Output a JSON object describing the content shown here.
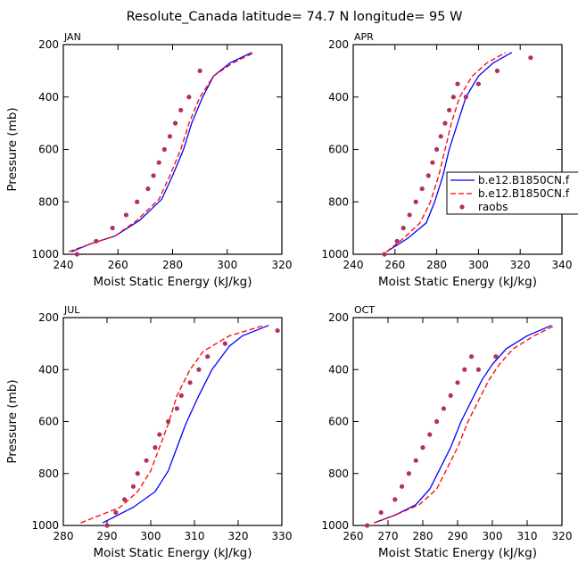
{
  "title": "Resolute_Canada   latitude=  74.7 N longitude=  95 W",
  "colors": {
    "series1": "#0000ff",
    "series2": "#ff0000",
    "raobs": "#b03060"
  },
  "legend": {
    "labels": [
      "b.e12.B1850CN.f",
      "b.e12.B1850CN.f",
      "raobs"
    ],
    "placement": "right of APR panel, clipped at page edge"
  },
  "chart_data": [
    {
      "type": "line",
      "panel": "JAN",
      "xlabel": "Moist Static Energy (kJ/kg)",
      "ylabel": "Pressure (mb)",
      "xlim": [
        240,
        320
      ],
      "ylim": [
        1000,
        200
      ],
      "y_reversed": true,
      "xticks": [
        240,
        260,
        280,
        300,
        320
      ],
      "yticks": [
        200,
        400,
        600,
        800,
        1000
      ],
      "grid": false,
      "series": [
        {
          "name": "b.e12.B1850CN.f",
          "style": "solid",
          "color": "#0000ff",
          "x": [
            243,
            250,
            259,
            268,
            276,
            280,
            284,
            287,
            291,
            295,
            301,
            309
          ],
          "y": [
            990,
            960,
            930,
            870,
            790,
            700,
            600,
            500,
            400,
            320,
            270,
            230
          ]
        },
        {
          "name": "b.e12.B1850CN.f",
          "style": "dashed",
          "color": "#ff0000",
          "x": [
            242,
            250,
            259,
            267,
            275,
            279,
            283,
            286,
            290,
            295,
            302,
            310
          ],
          "y": [
            990,
            960,
            930,
            870,
            790,
            700,
            600,
            500,
            400,
            320,
            270,
            230
          ]
        },
        {
          "name": "raobs",
          "style": "markers",
          "color": "#b03060",
          "x": [
            245,
            252,
            258,
            263,
            267,
            271,
            273,
            275,
            277,
            279,
            281,
            283,
            286,
            290
          ],
          "y": [
            1000,
            950,
            900,
            850,
            800,
            750,
            700,
            650,
            600,
            550,
            500,
            450,
            400,
            300
          ]
        }
      ]
    },
    {
      "type": "line",
      "panel": "APR",
      "xlabel": "Moist Static Energy (kJ/kg)",
      "ylabel": "",
      "xlim": [
        240,
        340
      ],
      "ylim": [
        1000,
        200
      ],
      "y_reversed": true,
      "xticks": [
        240,
        260,
        280,
        300,
        320,
        340
      ],
      "yticks": [
        200,
        400,
        600,
        800,
        1000
      ],
      "grid": false,
      "series": [
        {
          "name": "b.e12.B1850CN.f",
          "style": "solid",
          "color": "#0000ff",
          "x": [
            256,
            266,
            275,
            279,
            283,
            286,
            290,
            294,
            300,
            307,
            316
          ],
          "y": [
            990,
            940,
            880,
            800,
            700,
            600,
            500,
            400,
            320,
            270,
            230
          ]
        },
        {
          "name": "b.e12.B1850CN.f",
          "style": "dashed",
          "color": "#ff0000",
          "x": [
            256,
            264,
            272,
            277,
            281,
            284,
            287,
            291,
            297,
            304,
            313
          ],
          "y": [
            990,
            940,
            880,
            800,
            700,
            600,
            500,
            400,
            320,
            270,
            230
          ]
        },
        {
          "name": "raobs",
          "style": "markers",
          "color": "#b03060",
          "x": [
            255,
            261,
            264,
            267,
            270,
            273,
            276,
            278,
            280,
            282,
            284,
            286,
            288,
            290,
            294,
            300,
            309,
            325
          ],
          "y": [
            1000,
            950,
            900,
            850,
            800,
            750,
            700,
            650,
            600,
            550,
            500,
            450,
            400,
            350,
            400,
            350,
            300,
            250
          ]
        }
      ]
    },
    {
      "type": "line",
      "panel": "JUL",
      "xlabel": "Moist Static Energy (kJ/kg)",
      "ylabel": "Pressure (mb)",
      "xlim": [
        280,
        330
      ],
      "ylim": [
        1000,
        200
      ],
      "y_reversed": true,
      "xticks": [
        280,
        290,
        300,
        310,
        320,
        330
      ],
      "yticks": [
        200,
        400,
        600,
        800,
        1000
      ],
      "grid": false,
      "series": [
        {
          "name": "b.e12.B1850CN.f",
          "style": "solid",
          "color": "#0000ff",
          "x": [
            289,
            296,
            301,
            304,
            306,
            308,
            311,
            314,
            318,
            321,
            327
          ],
          "y": [
            990,
            930,
            870,
            790,
            700,
            610,
            500,
            400,
            310,
            270,
            230
          ]
        },
        {
          "name": "b.e12.B1850CN.f",
          "style": "dashed",
          "color": "#ff0000",
          "x": [
            284,
            293,
            297,
            300,
            302,
            304,
            306,
            309,
            312,
            315,
            318,
            326
          ],
          "y": [
            990,
            930,
            870,
            790,
            700,
            610,
            500,
            400,
            330,
            300,
            270,
            230
          ]
        },
        {
          "name": "raobs",
          "style": "markers",
          "color": "#b03060",
          "x": [
            290,
            292,
            294,
            296,
            297,
            299,
            301,
            302,
            304,
            306,
            307,
            309,
            311,
            313,
            317,
            329
          ],
          "y": [
            1000,
            950,
            900,
            850,
            800,
            750,
            700,
            650,
            600,
            550,
            500,
            450,
            400,
            350,
            300,
            250
          ]
        }
      ]
    },
    {
      "type": "line",
      "panel": "OCT",
      "xlabel": "Moist Static Energy (kJ/kg)",
      "ylabel": "",
      "xlim": [
        260,
        320
      ],
      "ylim": [
        1000,
        200
      ],
      "y_reversed": true,
      "xticks": [
        260,
        270,
        280,
        290,
        300,
        310,
        320
      ],
      "yticks": [
        200,
        400,
        600,
        800,
        1000
      ],
      "grid": false,
      "series": [
        {
          "name": "b.e12.B1850CN.f",
          "style": "solid",
          "color": "#0000ff",
          "x": [
            266,
            272,
            278,
            282,
            285,
            288,
            291,
            294,
            297,
            300,
            304,
            310,
            317
          ],
          "y": [
            990,
            960,
            920,
            860,
            780,
            700,
            600,
            520,
            440,
            380,
            320,
            270,
            230
          ]
        },
        {
          "name": "b.e12.B1850CN.f",
          "style": "dashed",
          "color": "#ff0000",
          "x": [
            266,
            272,
            279,
            284,
            287,
            290,
            293,
            296,
            299,
            302,
            306,
            312,
            318
          ],
          "y": [
            990,
            960,
            920,
            860,
            780,
            700,
            600,
            520,
            440,
            380,
            320,
            270,
            230
          ]
        },
        {
          "name": "raobs",
          "style": "markers",
          "color": "#b03060",
          "x": [
            264,
            268,
            272,
            274,
            276,
            278,
            280,
            282,
            284,
            286,
            288,
            290,
            292,
            294,
            296,
            301
          ],
          "y": [
            1000,
            950,
            900,
            850,
            800,
            750,
            700,
            650,
            600,
            550,
            500,
            450,
            400,
            350,
            400,
            350
          ]
        }
      ]
    }
  ]
}
